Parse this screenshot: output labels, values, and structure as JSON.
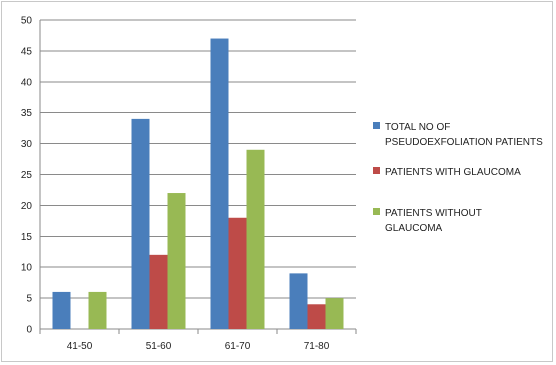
{
  "chart_data": {
    "type": "bar",
    "title": "",
    "xlabel": "",
    "ylabel": "",
    "categories": [
      "41-50",
      "51-60",
      "61-70",
      "71-80"
    ],
    "ylim": [
      0,
      50
    ],
    "yticks": [
      "0",
      "5",
      "10",
      "15",
      "20",
      "25",
      "30",
      "35",
      "40",
      "45",
      "50"
    ],
    "grid": true,
    "legend_position": "right",
    "series": [
      {
        "name": "TOTAL NO OF PSEUDOEXFOLIATION PATIENTS",
        "legend_lines": [
          "TOTAL NO OF",
          "PSEUDOEXFOLIATION PATIENTS"
        ],
        "color": "#4a7ebb",
        "values": [
          6,
          34,
          47,
          9
        ]
      },
      {
        "name": "PATIENTS WITH GLAUCOMA",
        "legend_lines": [
          "PATIENTS WITH GLAUCOMA"
        ],
        "color": "#be4b48",
        "values": [
          0,
          12,
          18,
          4
        ]
      },
      {
        "name": "PATIENTS WITHOUT GLAUCOMA",
        "legend_lines": [
          "PATIENTS WITHOUT",
          "GLAUCOMA"
        ],
        "color": "#98b954",
        "values": [
          6,
          22,
          29,
          5
        ]
      }
    ]
  }
}
